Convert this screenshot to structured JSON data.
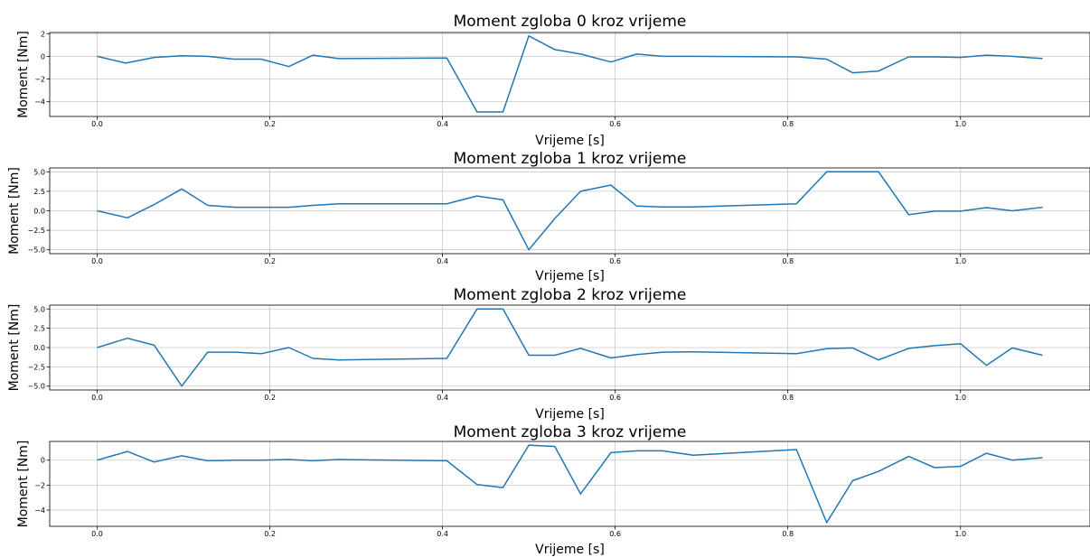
{
  "chart_data": [
    {
      "type": "line",
      "title": "Moment zgloba 0 kroz vrijeme",
      "xlabel": "Vrijeme [s]",
      "ylabel": "Moment [Nm]",
      "xlim": [
        -0.055,
        1.15
      ],
      "ylim": [
        -5.3,
        2.1
      ],
      "xticks": [
        "0.0",
        "0.2",
        "0.4",
        "0.6",
        "0.8",
        "1.0"
      ],
      "yticks": [
        "2",
        "0",
        "−2",
        "−4"
      ],
      "grid": true,
      "x": [
        0.0,
        0.033,
        0.066,
        0.098,
        0.128,
        0.158,
        0.19,
        0.222,
        0.25,
        0.28,
        0.405,
        0.44,
        0.47,
        0.5,
        0.53,
        0.56,
        0.595,
        0.625,
        0.655,
        0.69,
        0.81,
        0.845,
        0.875,
        0.905,
        0.94,
        0.97,
        1.0,
        1.03,
        1.06,
        1.095
      ],
      "values": [
        0.0,
        -0.6,
        -0.1,
        0.05,
        0.0,
        -0.25,
        -0.25,
        -0.9,
        0.1,
        -0.2,
        -0.15,
        -4.9,
        -4.9,
        1.8,
        0.6,
        0.2,
        -0.5,
        0.2,
        0.0,
        0.0,
        -0.05,
        -0.25,
        -1.45,
        -1.3,
        -0.05,
        -0.05,
        -0.1,
        0.1,
        0.0,
        -0.2
      ]
    },
    {
      "type": "line",
      "title": "Moment zgloba 1 kroz vrijeme",
      "xlabel": "Vrijeme [s]",
      "ylabel": "Moment [Nm]",
      "xlim": [
        -0.055,
        1.15
      ],
      "ylim": [
        -5.5,
        5.5
      ],
      "xticks": [
        "0.0",
        "0.2",
        "0.4",
        "0.6",
        "0.8",
        "1.0"
      ],
      "yticks": [
        "5.0",
        "2.5",
        "0.0",
        "−2.5",
        "−5.0"
      ],
      "grid": true,
      "x": [
        0.0,
        0.035,
        0.066,
        0.098,
        0.128,
        0.16,
        0.19,
        0.222,
        0.25,
        0.28,
        0.405,
        0.44,
        0.47,
        0.5,
        0.53,
        0.56,
        0.595,
        0.625,
        0.655,
        0.69,
        0.81,
        0.845,
        0.875,
        0.905,
        0.94,
        0.97,
        1.0,
        1.03,
        1.06,
        1.095
      ],
      "values": [
        0.0,
        -0.9,
        0.8,
        2.8,
        0.7,
        0.45,
        0.45,
        0.45,
        0.7,
        0.9,
        0.9,
        1.9,
        1.4,
        -5.0,
        -1.0,
        2.5,
        3.3,
        0.6,
        0.5,
        0.5,
        0.9,
        5.0,
        5.0,
        5.0,
        -0.5,
        -0.05,
        -0.05,
        0.4,
        0.0,
        0.45
      ]
    },
    {
      "type": "line",
      "title": "Moment zgloba 2 kroz vrijeme",
      "xlabel": "Vrijeme [s]",
      "ylabel": "Moment [Nm]",
      "xlim": [
        -0.055,
        1.15
      ],
      "ylim": [
        -5.5,
        5.5
      ],
      "xticks": [
        "0.0",
        "0.2",
        "0.4",
        "0.6",
        "0.8",
        "1.0"
      ],
      "yticks": [
        "5.0",
        "2.5",
        "0.0",
        "−2.5",
        "−5.0"
      ],
      "grid": true,
      "x": [
        0.0,
        0.035,
        0.066,
        0.098,
        0.128,
        0.16,
        0.19,
        0.222,
        0.25,
        0.28,
        0.405,
        0.44,
        0.47,
        0.5,
        0.53,
        0.56,
        0.595,
        0.625,
        0.655,
        0.69,
        0.81,
        0.845,
        0.875,
        0.905,
        0.94,
        0.97,
        1.0,
        1.03,
        1.06,
        1.095
      ],
      "values": [
        0.0,
        1.2,
        0.3,
        -5.0,
        -0.6,
        -0.6,
        -0.8,
        0.0,
        -1.4,
        -1.6,
        -1.4,
        5.0,
        5.0,
        -1.0,
        -1.0,
        -0.1,
        -1.35,
        -0.9,
        -0.6,
        -0.55,
        -0.8,
        -0.15,
        -0.05,
        -1.6,
        -0.1,
        0.25,
        0.5,
        -2.3,
        -0.05,
        -1.0
      ]
    },
    {
      "type": "line",
      "title": "Moment zgloba 3 kroz vrijeme",
      "xlabel": "Vrijeme [s]",
      "ylabel": "Moment [Nm]",
      "xlim": [
        -0.055,
        1.15
      ],
      "ylim": [
        -5.3,
        1.5
      ],
      "xticks": [
        "0.0",
        "0.2",
        "0.4",
        "0.6",
        "0.8",
        "1.0"
      ],
      "yticks": [
        "0",
        "−2",
        "−4"
      ],
      "grid": true,
      "x": [
        0.0,
        0.035,
        0.066,
        0.098,
        0.128,
        0.16,
        0.19,
        0.222,
        0.25,
        0.28,
        0.405,
        0.44,
        0.47,
        0.5,
        0.53,
        0.56,
        0.595,
        0.625,
        0.655,
        0.69,
        0.81,
        0.845,
        0.875,
        0.905,
        0.94,
        0.97,
        1.0,
        1.03,
        1.06,
        1.095
      ],
      "values": [
        0.0,
        0.7,
        -0.15,
        0.35,
        -0.05,
        0.0,
        0.0,
        0.05,
        -0.05,
        0.05,
        -0.05,
        -1.95,
        -2.2,
        1.2,
        1.1,
        -2.7,
        0.6,
        0.75,
        0.75,
        0.4,
        0.85,
        -5.0,
        -1.65,
        -0.9,
        0.3,
        -0.6,
        -0.5,
        0.55,
        0.0,
        0.2
      ]
    }
  ]
}
